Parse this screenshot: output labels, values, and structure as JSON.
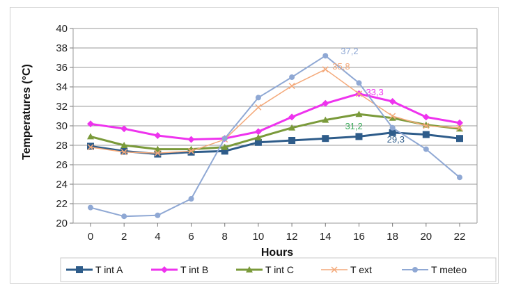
{
  "chart_data": {
    "type": "line",
    "xlabel": "Hours",
    "ylabel": "Temperatures (°C)",
    "x": [
      0,
      2,
      4,
      6,
      8,
      10,
      12,
      14,
      16,
      18,
      20,
      22
    ],
    "xticks": [
      "0",
      "2",
      "4",
      "6",
      "8",
      "10",
      "12",
      "14",
      "16",
      "18",
      "20",
      "22"
    ],
    "ylim": [
      20,
      40
    ],
    "yticks": [
      "20",
      "22",
      "24",
      "26",
      "28",
      "30",
      "32",
      "34",
      "36",
      "38",
      "40"
    ],
    "grid": true,
    "legend": "bottom",
    "series": [
      {
        "name": "T int A",
        "color": "#2e5c8a",
        "marker": "square",
        "width": 3,
        "values": [
          27.9,
          27.4,
          27.1,
          27.3,
          27.4,
          28.3,
          28.5,
          28.7,
          28.9,
          29.3,
          29.1,
          28.7
        ]
      },
      {
        "name": "T int B",
        "color": "#ee33ee",
        "marker": "diamond",
        "width": 3,
        "values": [
          30.2,
          29.7,
          29.0,
          28.6,
          28.7,
          29.4,
          30.9,
          32.3,
          33.3,
          32.5,
          30.9,
          30.3
        ]
      },
      {
        "name": "T int C",
        "color": "#7a9a3a",
        "marker": "triangle",
        "width": 3,
        "values": [
          28.9,
          28.0,
          27.6,
          27.6,
          27.8,
          28.8,
          29.8,
          30.6,
          31.2,
          30.8,
          30.1,
          29.7
        ]
      },
      {
        "name": "T ext",
        "color": "#f4a97a",
        "marker": "x",
        "width": 1.5,
        "values": [
          27.8,
          27.3,
          27.2,
          27.4,
          28.6,
          31.9,
          34.1,
          35.8,
          33.3,
          31.0,
          30.0,
          29.8
        ]
      },
      {
        "name": "T  meteo",
        "color": "#8fa8d4",
        "marker": "circle",
        "width": 2,
        "values": [
          21.6,
          20.7,
          20.8,
          22.5,
          28.7,
          32.9,
          35.0,
          37.2,
          34.4,
          29.8,
          27.6,
          24.7
        ]
      }
    ],
    "annotations": [
      {
        "text": "37,2",
        "x": 14,
        "y": 37.2,
        "color": "#8fa8d4"
      },
      {
        "text": "35,8",
        "x": 14,
        "y": 35.8,
        "color": "#f4a97a"
      },
      {
        "text": "33,3",
        "x": 16,
        "y": 33.3,
        "color": "#ee33ee"
      },
      {
        "text": "31,2",
        "x": 16,
        "y": 31.2,
        "color": "#3aaa5a"
      },
      {
        "text": "29,3",
        "x": 18,
        "y": 29.3,
        "color": "#2e5c8a"
      }
    ]
  }
}
